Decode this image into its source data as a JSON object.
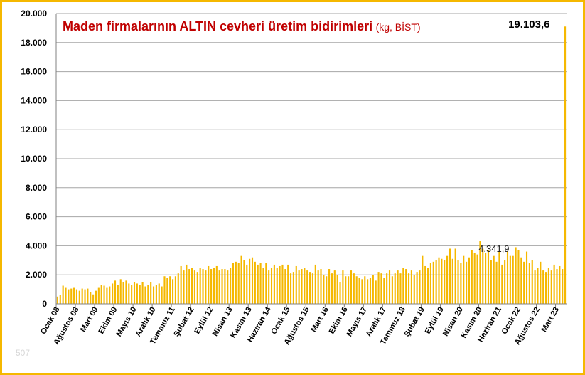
{
  "chart_data": {
    "type": "bar",
    "title": "Maden firmalarının ALTIN cevheri üretim bidirimleri",
    "subtitle": "(kg, BİST)",
    "xlabel": "",
    "ylabel": "",
    "ylim": [
      0,
      20000
    ],
    "grid": true,
    "legend": "none",
    "bar_color": "#f5b800",
    "gridline_color": "#a6a6a6",
    "title_color": "#c00000",
    "y_ticks": [
      "0",
      "2.000",
      "4.000",
      "6.000",
      "8.000",
      "10.000",
      "12.000",
      "14.000",
      "16.000",
      "18.000",
      "20.000"
    ],
    "x_tick_labels": [
      {
        "label": "Ocak 08",
        "index": 0
      },
      {
        "label": "Ağustos 08",
        "index": 7
      },
      {
        "label": "Mart 09",
        "index": 14
      },
      {
        "label": "Ekim 09",
        "index": 21
      },
      {
        "label": "Mayıs 10",
        "index": 28
      },
      {
        "label": "Aralık 10",
        "index": 35
      },
      {
        "label": "Temmuz 11",
        "index": 42
      },
      {
        "label": "Şubat 12",
        "index": 49
      },
      {
        "label": "Eylül 12",
        "index": 56
      },
      {
        "label": "Nisan 13",
        "index": 63
      },
      {
        "label": "Kasım 13",
        "index": 70
      },
      {
        "label": "Haziran 14",
        "index": 77
      },
      {
        "label": "Ocak 15",
        "index": 84
      },
      {
        "label": "Ağustos 15",
        "index": 91
      },
      {
        "label": "Mart 16",
        "index": 98
      },
      {
        "label": "Ekim 16",
        "index": 105
      },
      {
        "label": "Mayıs 17",
        "index": 112
      },
      {
        "label": "Aralık 17",
        "index": 119
      },
      {
        "label": "Temmuz 18",
        "index": 126
      },
      {
        "label": "Şubat 19",
        "index": 133
      },
      {
        "label": "Eylül 19",
        "index": 140
      },
      {
        "label": "Nisan 20",
        "index": 147
      },
      {
        "label": "Kasım 20",
        "index": 154
      },
      {
        "label": "Haziran 21",
        "index": 161
      },
      {
        "label": "Ocak 22",
        "index": 168
      },
      {
        "label": "Ağustos 22",
        "index": 175
      },
      {
        "label": "Mart 23",
        "index": 182
      }
    ],
    "values": [
      500,
      600,
      1250,
      1100,
      1000,
      1050,
      1100,
      1000,
      900,
      1050,
      1000,
      1050,
      800,
      650,
      900,
      1100,
      1300,
      1250,
      1100,
      1200,
      1400,
      1600,
      1300,
      1700,
      1500,
      1600,
      1400,
      1300,
      1500,
      1400,
      1300,
      1500,
      1200,
      1300,
      1500,
      1200,
      1300,
      1400,
      1200,
      1900,
      1800,
      1900,
      1700,
      1900,
      2100,
      2600,
      2300,
      2700,
      2400,
      2500,
      2300,
      2200,
      2500,
      2400,
      2300,
      2600,
      2400,
      2500,
      2600,
      2300,
      2400,
      2400,
      2300,
      2500,
      2800,
      2900,
      2800,
      3300,
      3000,
      2700,
      3100,
      3200,
      2900,
      2700,
      2800,
      2500,
      2800,
      2300,
      2500,
      2700,
      2500,
      2600,
      2700,
      2400,
      2700,
      2100,
      2200,
      2600,
      2300,
      2400,
      2500,
      2300,
      2200,
      2100,
      2700,
      2300,
      2400,
      2000,
      1900,
      2400,
      2100,
      2300,
      2000,
      1500,
      2300,
      1900,
      1900,
      2300,
      2100,
      1900,
      1800,
      1700,
      1900,
      1700,
      1800,
      2000,
      1600,
      2200,
      2100,
      1800,
      2100,
      2300,
      1900,
      2100,
      2300,
      2100,
      2500,
      2400,
      2100,
      2300,
      2000,
      2200,
      2300,
      3300,
      2600,
      2500,
      2800,
      2900,
      3000,
      3200,
      3100,
      3000,
      3300,
      3800,
      3100,
      3800,
      3000,
      2800,
      3300,
      2900,
      3200,
      3700,
      3500,
      3400,
      4342,
      3800,
      3500,
      3700,
      3000,
      3300,
      2900,
      3600,
      2700,
      3000,
      3600,
      3300,
      3300,
      3900,
      3700,
      3200,
      2900,
      3600,
      2800,
      3000,
      2300,
      2500,
      2900,
      2300,
      2200,
      2500,
      2300,
      2700,
      2400,
      2600,
      2400,
      19104
    ],
    "data_labels": [
      {
        "index": 158,
        "text": "4.341,9",
        "style": "normal"
      },
      {
        "index": 182,
        "text": "19.103,6",
        "style": "bold"
      }
    ]
  },
  "page": {
    "title_main": "Maden firmalarının ALTIN cevheri üretim bidirimleri",
    "title_unit": "(kg, BİST)",
    "page_number": "507"
  }
}
